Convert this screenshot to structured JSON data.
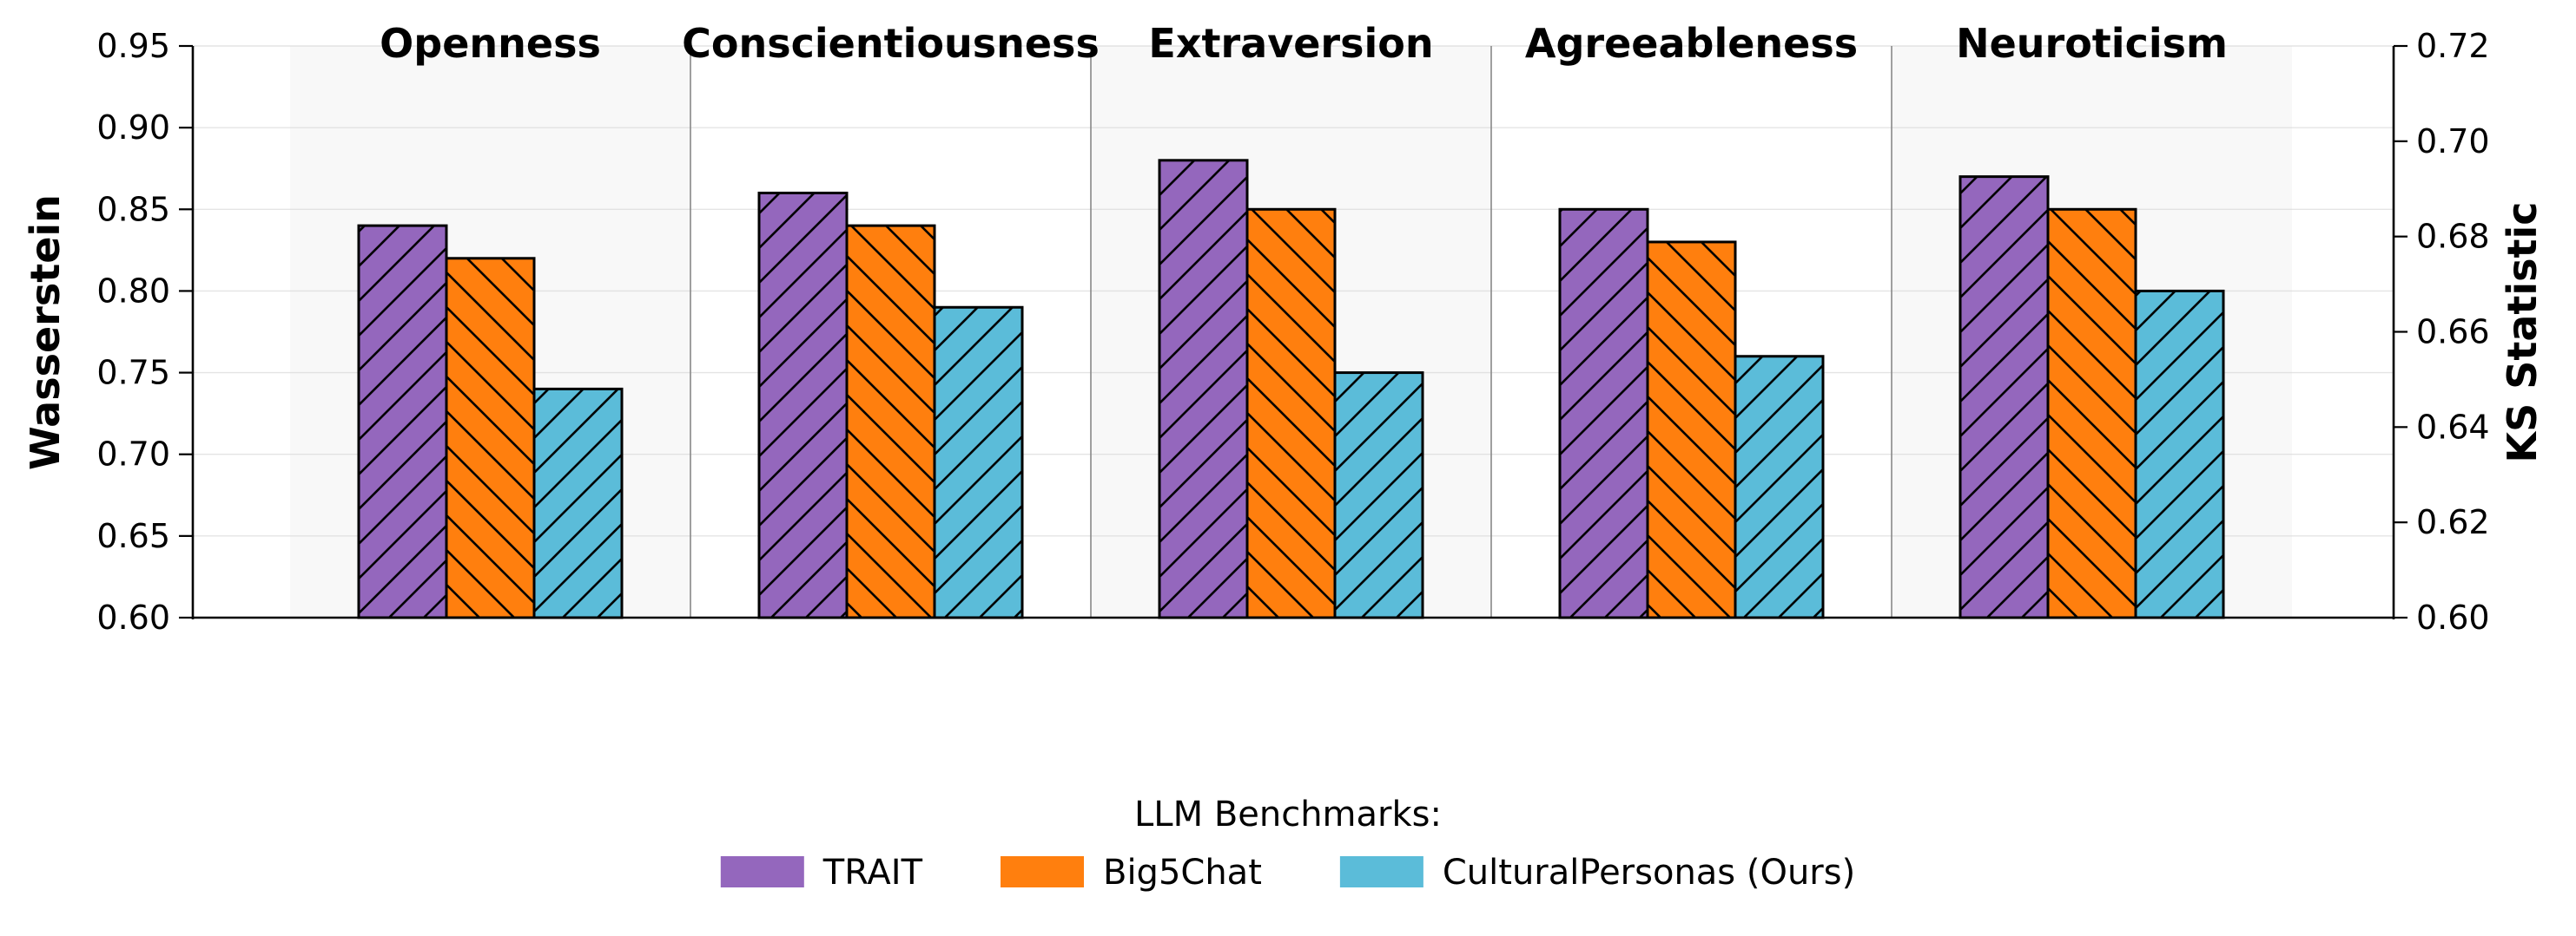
{
  "chart_data": {
    "type": "bar",
    "categories": [
      "Openness",
      "Conscientiousness",
      "Extraversion",
      "Agreeableness",
      "Neuroticism"
    ],
    "series": [
      {
        "name": "TRAIT",
        "values": [
          0.84,
          0.86,
          0.88,
          0.85,
          0.87
        ],
        "color": "#9467bd",
        "hatch": "forward"
      },
      {
        "name": "Big5Chat",
        "values": [
          0.82,
          0.84,
          0.85,
          0.83,
          0.85
        ],
        "color": "#ff7f0e",
        "hatch": "backward"
      },
      {
        "name": "CulturalPersonas (Ours)",
        "values": [
          0.74,
          0.79,
          0.75,
          0.76,
          0.8
        ],
        "color": "#5bbcd9",
        "hatch": "forward"
      }
    ],
    "ylabel": "Wasserstein",
    "ylim": [
      0.6,
      0.95
    ],
    "yticks": [
      "0.60",
      "0.65",
      "0.70",
      "0.75",
      "0.80",
      "0.85",
      "0.90",
      "0.95"
    ],
    "y2label": "KS Statistic",
    "y2lim": [
      0.6,
      0.72
    ],
    "y2ticks": [
      "0.60",
      "0.62",
      "0.64",
      "0.66",
      "0.68",
      "0.70",
      "0.72"
    ],
    "legend_title": "LLM Benchmarks:",
    "legend_position": "bottom-center",
    "grid": true
  }
}
